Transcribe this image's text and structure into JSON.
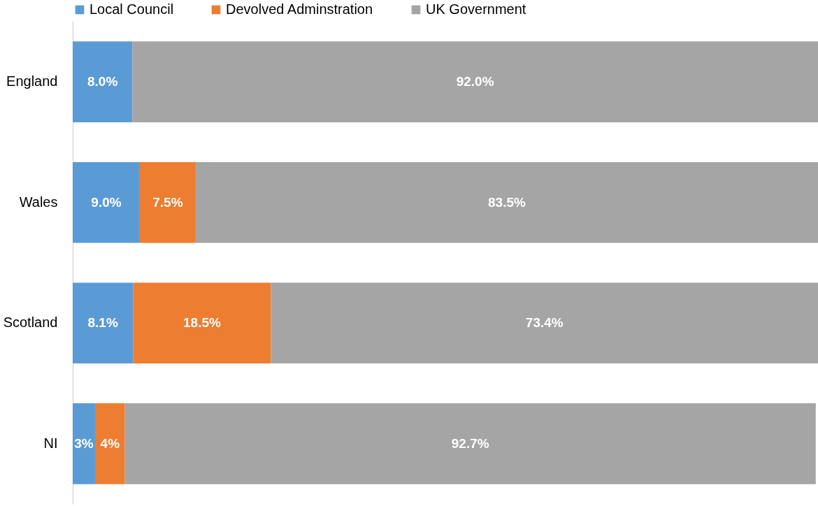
{
  "chart_data": {
    "type": "bar",
    "orientation": "horizontal",
    "stacked": true,
    "legend": "top",
    "categories": [
      "England",
      "Wales",
      "Scotland",
      "NI"
    ],
    "series": [
      {
        "name": "Local Council",
        "color": "#5b9bd5",
        "values": [
          8.0,
          9.0,
          8.1,
          3
        ],
        "value_labels": [
          "8.0%",
          "9.0%",
          "8.1%",
          "3%"
        ]
      },
      {
        "name": "Devolved Adminstration",
        "color": "#ed7d31",
        "values": [
          null,
          7.5,
          18.5,
          4
        ],
        "value_labels": [
          null,
          "7.5%",
          "18.5%",
          "4%"
        ]
      },
      {
        "name": "UK Government",
        "color": "#a5a5a5",
        "values": [
          92.0,
          83.5,
          73.4,
          92.7
        ],
        "value_labels": [
          "92.0%",
          "83.5%",
          "73.4%",
          "92.7%"
        ]
      }
    ]
  }
}
